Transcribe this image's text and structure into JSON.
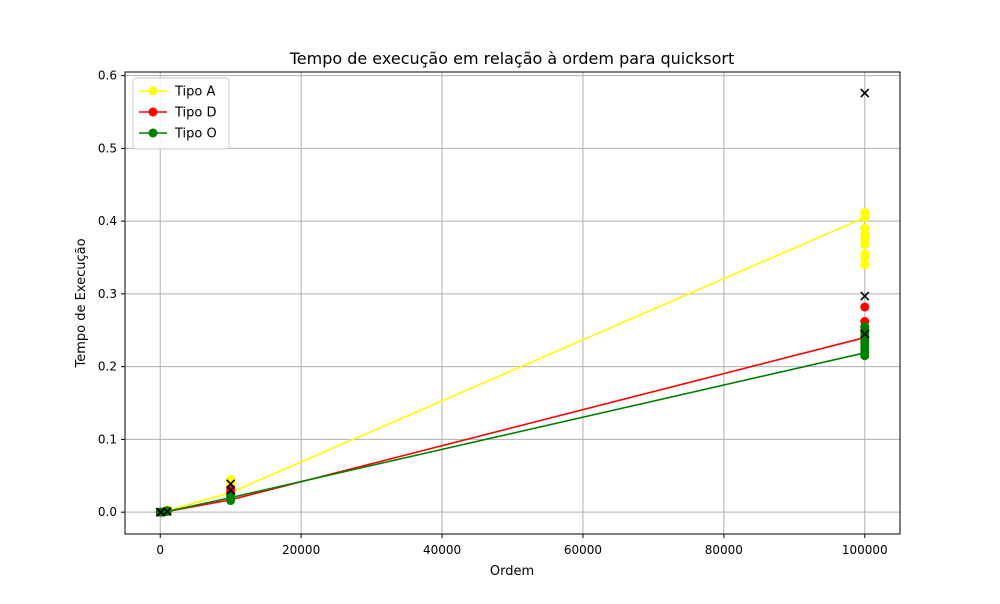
{
  "chart_data": {
    "type": "line",
    "title": "Tempo de execução em relação à ordem para quicksort",
    "xlabel": "Ordem",
    "ylabel": "Tempo de Execução",
    "xlim": [
      -5000,
      105000
    ],
    "ylim": [
      -0.03,
      0.605
    ],
    "x_ticks": [
      0,
      20000,
      40000,
      60000,
      80000,
      100000
    ],
    "x_tick_labels": [
      "0",
      "20000",
      "40000",
      "60000",
      "80000",
      "100000"
    ],
    "y_ticks": [
      0.0,
      0.1,
      0.2,
      0.3,
      0.4,
      0.5,
      0.6
    ],
    "y_tick_labels": [
      "0.0",
      "0.1",
      "0.2",
      "0.3",
      "0.4",
      "0.5",
      "0.6"
    ],
    "grid": true,
    "legend_placement": "top-left",
    "series": [
      {
        "name": "Tipo A",
        "color": "#ffff00",
        "line": {
          "x": [
            10,
            100,
            1000,
            10000,
            100000
          ],
          "y": [
            0.0,
            0.0,
            0.002,
            0.027,
            0.405
          ]
        },
        "points": [
          [
            10,
            0.0
          ],
          [
            100,
            0.0
          ],
          [
            1000,
            0.002
          ],
          [
            1000,
            0.003
          ],
          [
            10000,
            0.028
          ],
          [
            10000,
            0.04
          ],
          [
            10000,
            0.045
          ],
          [
            100000,
            0.34
          ],
          [
            100000,
            0.35
          ],
          [
            100000,
            0.355
          ],
          [
            100000,
            0.368
          ],
          [
            100000,
            0.375
          ],
          [
            100000,
            0.382
          ],
          [
            100000,
            0.39
          ],
          [
            100000,
            0.405
          ],
          [
            100000,
            0.412
          ]
        ]
      },
      {
        "name": "Tipo D",
        "color": "#ff0000",
        "line": {
          "x": [
            10,
            100,
            1000,
            10000,
            100000
          ],
          "y": [
            0.0,
            0.0,
            0.001,
            0.017,
            0.24
          ]
        },
        "points": [
          [
            10,
            0.0
          ],
          [
            100,
            0.0
          ],
          [
            1000,
            0.001
          ],
          [
            1000,
            0.002
          ],
          [
            10000,
            0.025
          ],
          [
            10000,
            0.028
          ],
          [
            10000,
            0.032
          ],
          [
            100000,
            0.232
          ],
          [
            100000,
            0.24
          ],
          [
            100000,
            0.248
          ],
          [
            100000,
            0.255
          ],
          [
            100000,
            0.262
          ],
          [
            100000,
            0.282
          ]
        ]
      },
      {
        "name": "Tipo O",
        "color": "#008000",
        "line": {
          "x": [
            10,
            100,
            1000,
            10000,
            100000
          ],
          "y": [
            0.0,
            0.0,
            0.001,
            0.02,
            0.219
          ]
        },
        "points": [
          [
            10,
            0.0
          ],
          [
            100,
            0.0
          ],
          [
            1000,
            0.001
          ],
          [
            1000,
            0.002
          ],
          [
            10000,
            0.016
          ],
          [
            10000,
            0.02
          ],
          [
            10000,
            0.023
          ],
          [
            100000,
            0.215
          ],
          [
            100000,
            0.22
          ],
          [
            100000,
            0.225
          ],
          [
            100000,
            0.23
          ],
          [
            100000,
            0.235
          ],
          [
            100000,
            0.24
          ],
          [
            100000,
            0.245
          ],
          [
            100000,
            0.25
          ],
          [
            100000,
            0.255
          ]
        ]
      }
    ],
    "markers_x": {
      "color": "#000000",
      "points": [
        [
          10,
          0.0
        ],
        [
          100,
          0.0
        ],
        [
          1000,
          0.001
        ],
        [
          10000,
          0.03
        ],
        [
          10000,
          0.039
        ],
        [
          100000,
          0.245
        ],
        [
          100000,
          0.297
        ],
        [
          100000,
          0.576
        ]
      ]
    }
  }
}
